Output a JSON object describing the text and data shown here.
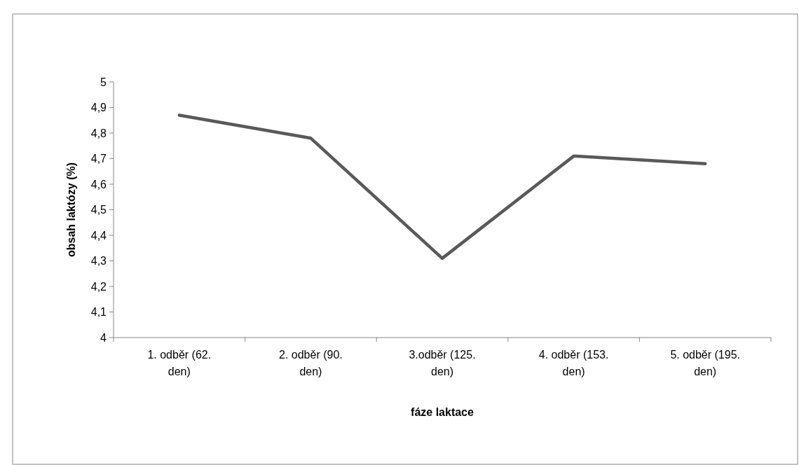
{
  "chart_data": {
    "type": "line",
    "xlabel": "fáze laktace",
    "ylabel": "obsah laktózy (%)",
    "categories": [
      "1. odběr (62. den)",
      "2. odběr (90. den)",
      "3.odběr (125. den)",
      "4. odběr (153. den)",
      "5. odběr (195. den)"
    ],
    "series": [
      {
        "color": "#595959",
        "values": [
          4.87,
          4.78,
          4.31,
          4.71,
          4.68
        ]
      }
    ],
    "ylim": [
      4,
      5
    ],
    "yticks": [
      4,
      {
        "value": 4.1,
        "label": "4,1"
      },
      {
        "value": 4.2,
        "label": "4,2"
      },
      {
        "value": 4.3,
        "label": "4,3"
      },
      {
        "value": 4.4,
        "label": "4,4"
      },
      {
        "value": 4.5,
        "label": "4,5"
      },
      {
        "value": 4.6,
        "label": "4,6"
      },
      {
        "value": 4.7,
        "label": "4,7"
      },
      {
        "value": 4.8,
        "label": "4,8"
      },
      {
        "value": 4.9,
        "label": "4,9"
      },
      5
    ],
    "marker": "none",
    "line_style": "solid"
  }
}
